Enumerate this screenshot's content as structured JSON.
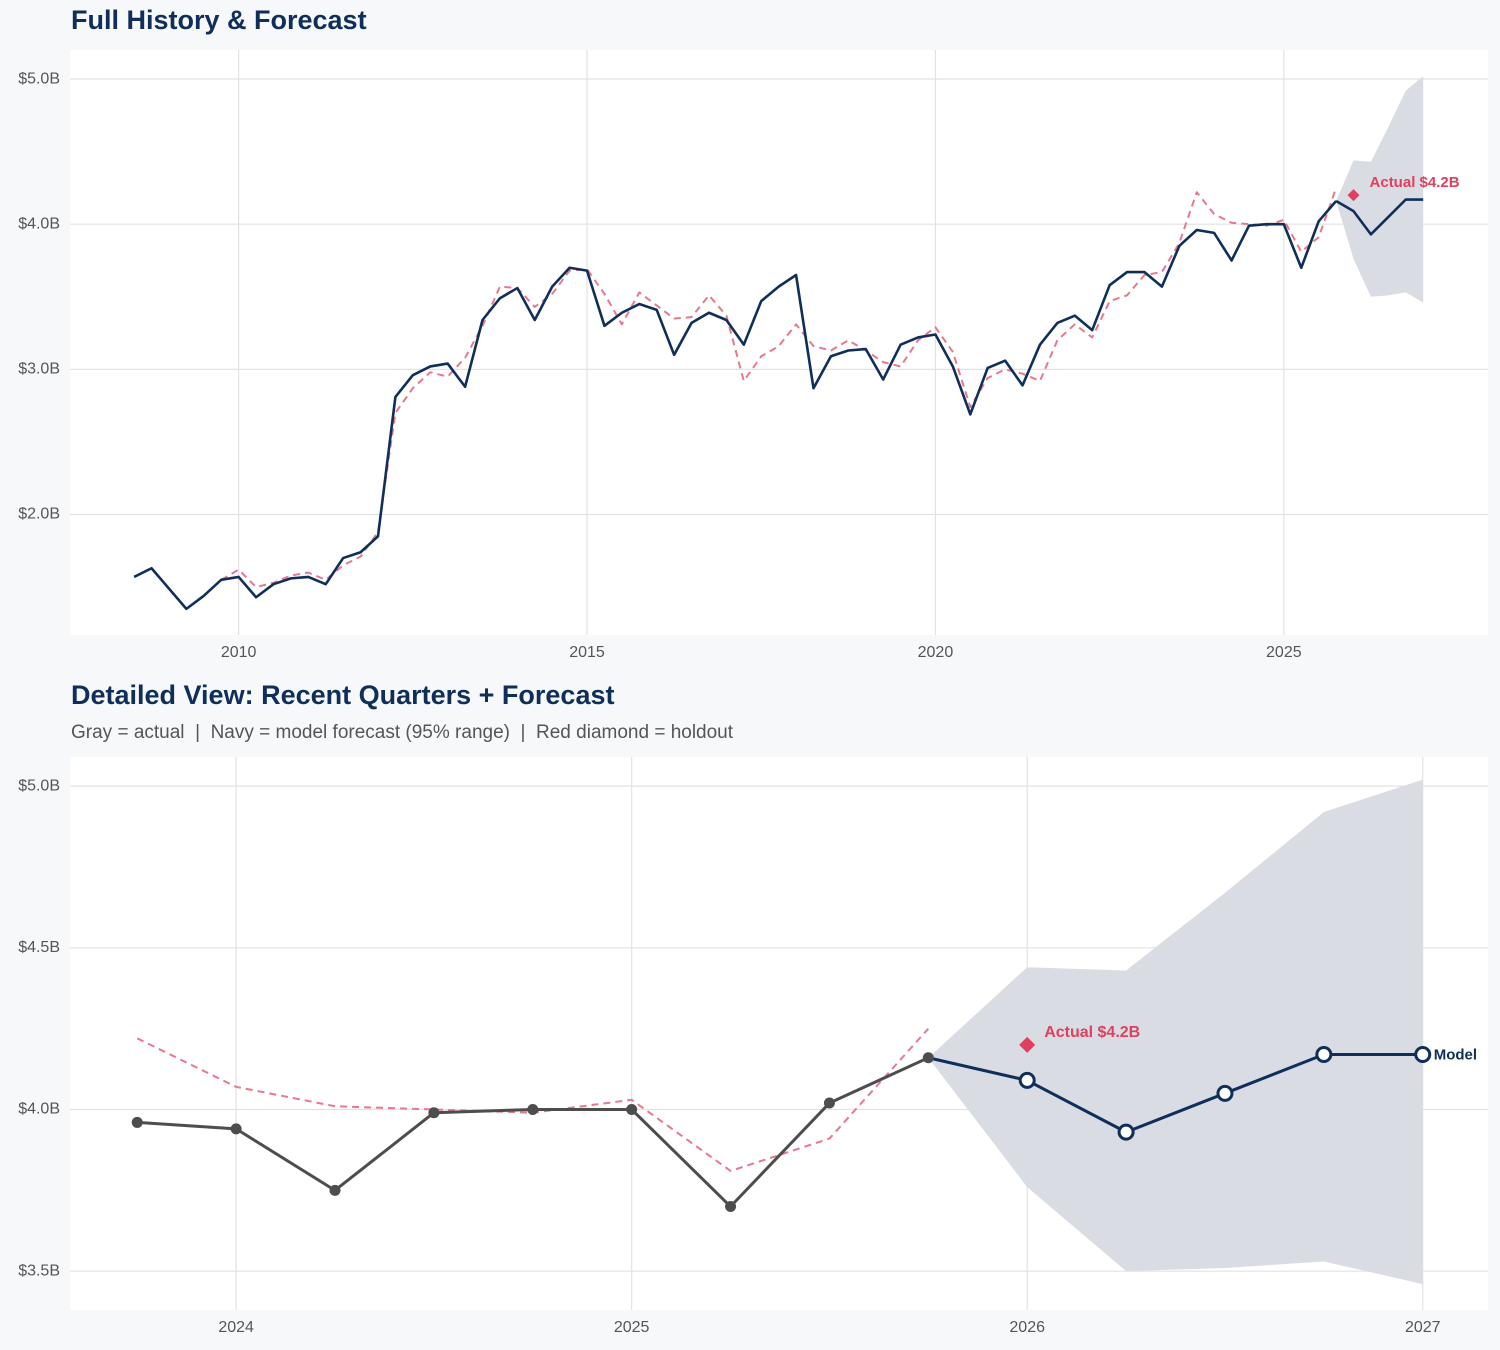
{
  "chart_data": [
    {
      "type": "line",
      "title": "Full History & Forecast",
      "x": [
        2008.5,
        2008.75,
        2009,
        2009.25,
        2009.5,
        2009.75,
        2010,
        2010.25,
        2010.5,
        2010.75,
        2011,
        2011.25,
        2011.5,
        2011.75,
        2012,
        2012.25,
        2012.5,
        2012.75,
        2013,
        2013.25,
        2013.5,
        2013.75,
        2014,
        2014.25,
        2014.5,
        2014.75,
        2015,
        2015.25,
        2015.5,
        2015.75,
        2016,
        2016.25,
        2016.5,
        2016.75,
        2017,
        2017.25,
        2017.5,
        2017.75,
        2018,
        2018.25,
        2018.5,
        2018.75,
        2019,
        2019.25,
        2019.5,
        2019.75,
        2020,
        2020.25,
        2020.5,
        2020.75,
        2021,
        2021.25,
        2021.5,
        2021.75,
        2022,
        2022.25,
        2022.5,
        2022.75,
        2023,
        2023.25,
        2023.5,
        2023.75,
        2024,
        2024.25,
        2024.5,
        2024.75,
        2025,
        2025.25,
        2025.5,
        2025.75
      ],
      "band": {
        "color": "#d9dde3",
        "x": [
          2025.75,
          2026,
          2026.25,
          2026.5,
          2026.75,
          2027
        ],
        "lower": [
          4.16,
          3.76,
          3.5,
          3.51,
          3.53,
          3.46
        ],
        "upper": [
          4.16,
          4.44,
          4.43,
          4.67,
          4.92,
          5.02
        ]
      },
      "series": [
        {
          "color": "#e8788c",
          "dash": true,
          "values": [
            null,
            null,
            null,
            null,
            null,
            1.55,
            1.62,
            1.5,
            1.53,
            1.58,
            1.6,
            1.55,
            1.65,
            1.71,
            1.88,
            2.7,
            2.87,
            2.98,
            2.95,
            3.08,
            3.3,
            3.57,
            3.56,
            3.43,
            3.52,
            3.68,
            3.69,
            3.52,
            3.31,
            3.53,
            3.44,
            3.35,
            3.36,
            3.51,
            3.37,
            2.92,
            3.09,
            3.16,
            3.31,
            3.16,
            3.13,
            3.2,
            3.13,
            3.05,
            3.02,
            3.2,
            3.29,
            3.12,
            2.74,
            2.94,
            3.0,
            2.97,
            2.92,
            3.2,
            3.31,
            3.22,
            3.47,
            3.51,
            3.65,
            3.67,
            3.87,
            4.22,
            4.07,
            4.01,
            4.0,
            3.99,
            4.03,
            3.81,
            3.91,
            4.25
          ]
        },
        {
          "color": "#0f2f5a",
          "x": [
            2025.75,
            2026,
            2026.25,
            2026.5,
            2026.75,
            2027
          ],
          "values": [
            4.16,
            4.09,
            3.93,
            4.05,
            4.17,
            4.17
          ]
        },
        {
          "color": "#0f2f5a",
          "values": [
            1.57,
            1.63,
            1.49,
            1.35,
            1.44,
            1.55,
            1.57,
            1.43,
            1.52,
            1.56,
            1.57,
            1.52,
            1.7,
            1.74,
            1.85,
            2.81,
            2.96,
            3.02,
            3.04,
            2.88,
            3.34,
            3.49,
            3.56,
            3.34,
            3.57,
            3.7,
            3.68,
            3.3,
            3.39,
            3.45,
            3.41,
            3.1,
            3.32,
            3.39,
            3.34,
            3.17,
            3.47,
            3.57,
            3.65,
            2.87,
            3.09,
            3.13,
            3.14,
            2.93,
            3.17,
            3.22,
            3.24,
            3.02,
            2.69,
            3.01,
            3.06,
            2.89,
            3.17,
            3.32,
            3.37,
            3.27,
            3.58,
            3.67,
            3.67,
            3.57,
            3.85,
            3.96,
            3.94,
            3.75,
            3.99,
            4.0,
            4.0,
            3.7,
            4.02,
            4.16
          ]
        }
      ],
      "annotation": {
        "x": 2026,
        "y": 4.2,
        "text": "Actual $4.2B",
        "color": "#e0405e"
      },
      "xlim": [
        2007.58,
        2027.93
      ],
      "xticks": [
        2010,
        2015,
        2020,
        2025
      ],
      "ylim": [
        1.17,
        5.2
      ],
      "yticks": [
        {
          "value": 2,
          "label": "$2.0B"
        },
        {
          "value": 3,
          "label": "$3.0B"
        },
        {
          "value": 4,
          "label": "$4.0B"
        },
        {
          "value": 5,
          "label": "$5.0B"
        }
      ],
      "grid": true
    },
    {
      "type": "line",
      "title": "Detailed View: Recent Quarters + Forecast",
      "subtitle": "Gray = actual  |  Navy = model forecast (95% range)  |  Red diamond = holdout",
      "x": [
        2023.75,
        2024,
        2024.25,
        2024.5,
        2024.75,
        2025,
        2025.25,
        2025.5,
        2025.75
      ],
      "band": {
        "color": "#d9dde3",
        "x": [
          2025.75,
          2026,
          2026.25,
          2026.5,
          2026.75,
          2027
        ],
        "lower": [
          4.16,
          3.76,
          3.5,
          3.51,
          3.53,
          3.46
        ],
        "upper": [
          4.16,
          4.44,
          4.43,
          4.67,
          4.92,
          5.02
        ]
      },
      "series": [
        {
          "color": "#e8788c",
          "dash": true,
          "values": [
            4.22,
            4.07,
            4.01,
            4.0,
            3.99,
            4.03,
            3.81,
            3.91,
            4.25
          ]
        },
        {
          "color": "#0f2f5a",
          "name": "Model",
          "marker": "hollow",
          "x": [
            2025.75,
            2026,
            2026.25,
            2026.5,
            2026.75,
            2027
          ],
          "values": [
            4.16,
            4.09,
            3.93,
            4.05,
            4.17,
            4.17
          ]
        },
        {
          "color": "#4d4d4d",
          "marker": "filled",
          "values": [
            3.96,
            3.94,
            3.75,
            3.99,
            4.0,
            4.0,
            3.7,
            4.02,
            4.16
          ]
        }
      ],
      "annotation": {
        "x": 2026,
        "y": 4.2,
        "text": "Actual $4.2B",
        "color": "#e0405e"
      },
      "xlim": [
        2023.58,
        2027.165
      ],
      "xticks": [
        2024,
        2025,
        2026,
        2027
      ],
      "ylim": [
        3.38,
        5.09
      ],
      "yticks": [
        {
          "value": 3.5,
          "label": "$3.5B"
        },
        {
          "value": 4,
          "label": "$4.0B"
        },
        {
          "value": 4.5,
          "label": "$4.5B"
        },
        {
          "value": 5,
          "label": "$5.0B"
        }
      ],
      "grid": true
    }
  ]
}
